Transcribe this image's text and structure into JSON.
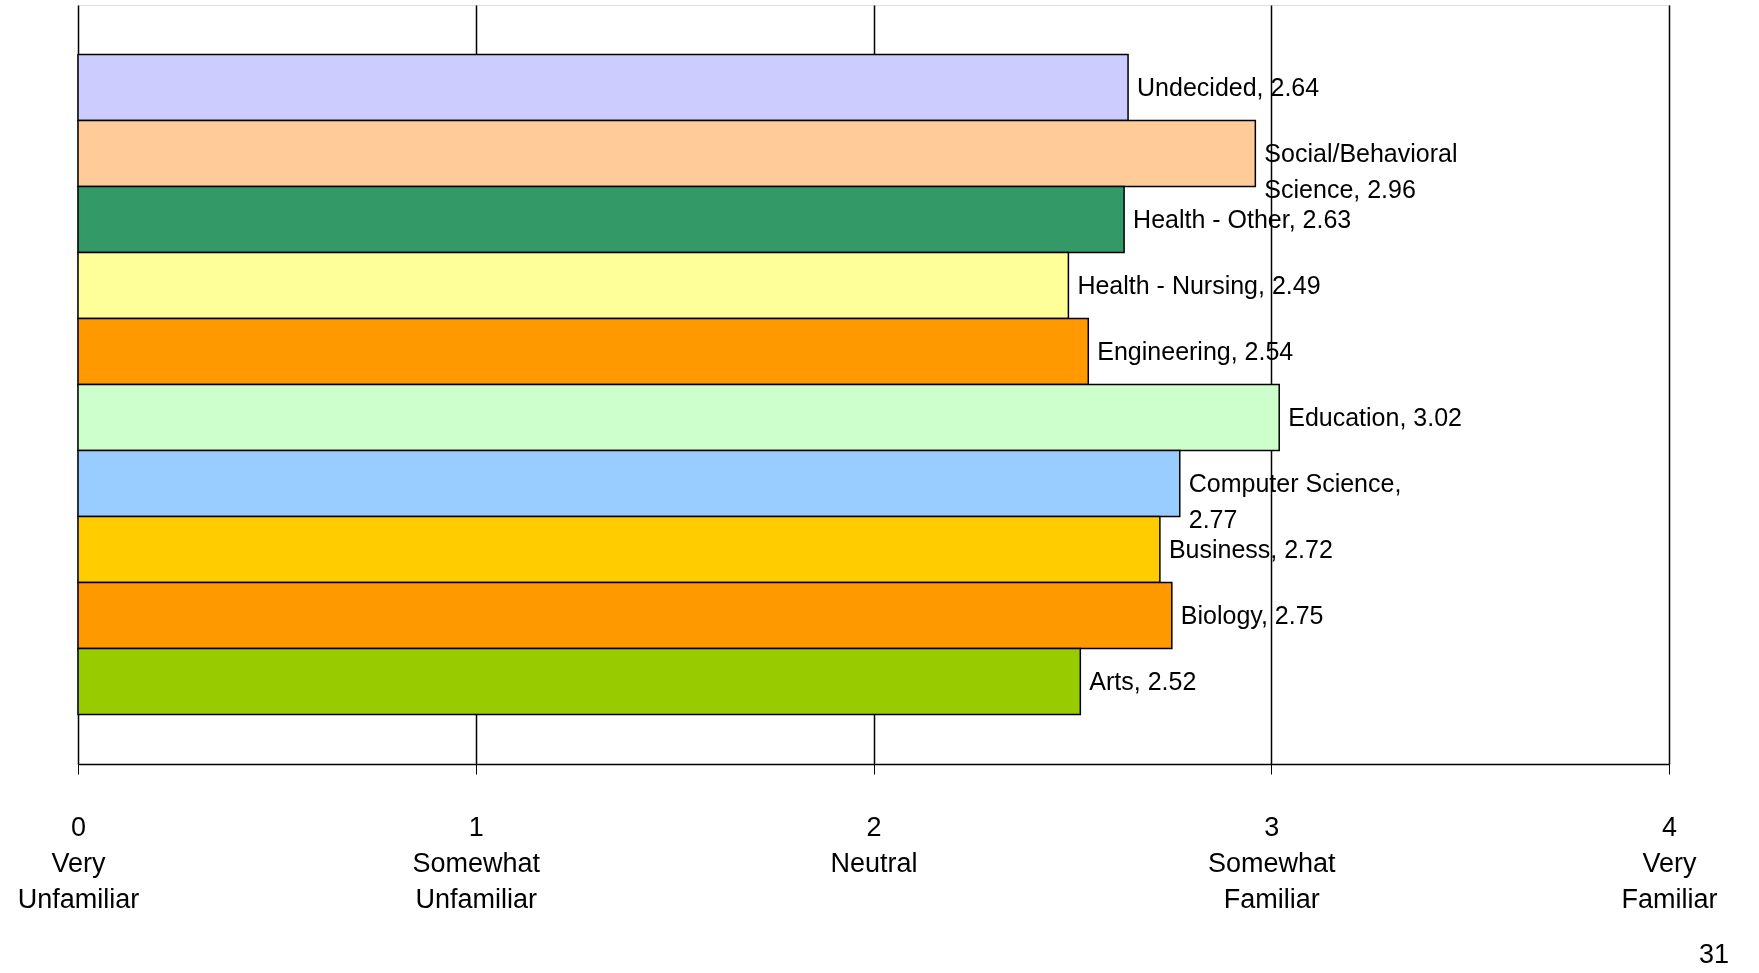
{
  "chart_data": {
    "type": "bar",
    "orientation": "horizontal",
    "categories": [
      null,
      null,
      null,
      null,
      null,
      null,
      null,
      null,
      null,
      null
    ],
    "values": [
      2.64,
      2.96,
      2.63,
      2.49,
      2.54,
      3.02,
      2.77,
      2.72,
      2.75,
      2.52
    ],
    "colors": [
      "#ccccff",
      "#ffcc99",
      "#339966",
      "#ffff99",
      "#ff9900",
      "#ccffcc",
      "#99ccff",
      "#ffcc00",
      "#ff9900",
      "#99cc00"
    ],
    "value_labels": [
      "Undecided, 2.64",
      "Social/Behavioral\nScience, 2.96",
      "Health - Other, 2.63",
      "Health - Nursing, 2.49",
      "Engineering, 2.54",
      "Education, 3.02",
      "Computer Science,\n2.77",
      "Business, 2.72",
      "Biology, 2.75",
      "Arts, 2.52"
    ],
    "xlim": [
      0,
      4
    ],
    "xticks": [
      {
        "value": 0,
        "label": "0\nVery\nUnfamiliar"
      },
      {
        "value": 1,
        "label": "1\nSomewhat\nUnfamiliar"
      },
      {
        "value": 2,
        "label": "2\nNeutral"
      },
      {
        "value": 3,
        "label": "3\nSomewhat\nFamiliar"
      },
      {
        "value": 4,
        "label": "4\nVery\nFamiliar"
      }
    ],
    "grid": "x",
    "tick_labels": "x",
    "legend": false,
    "annotations": [
      "31"
    ]
  }
}
